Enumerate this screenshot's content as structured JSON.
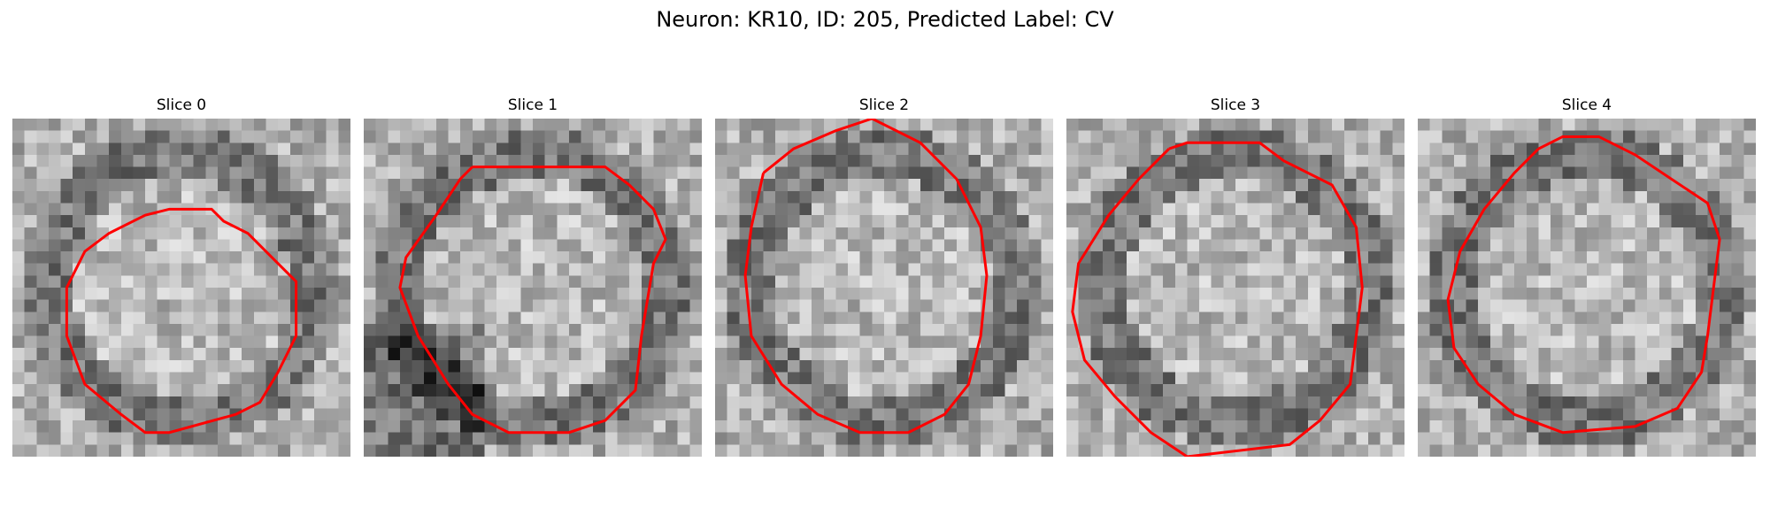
{
  "figure": {
    "title": "Neuron: KR10, ID: 205, Predicted Label: CV"
  },
  "colors": {
    "contour": "#ff0000",
    "colormap": "gray"
  },
  "panels": [
    {
      "title": "Slice 0",
      "seed": 11,
      "gradient": "ring",
      "contour": [
        [
          14.5,
          7.5
        ],
        [
          16.5,
          7.5
        ],
        [
          17.5,
          8.5
        ],
        [
          19.5,
          9.5
        ],
        [
          21.5,
          11.5
        ],
        [
          23.5,
          13.5
        ],
        [
          23.5,
          18
        ],
        [
          22,
          21
        ],
        [
          20.5,
          23.5
        ],
        [
          18.5,
          24.5
        ],
        [
          13,
          26
        ],
        [
          11,
          26
        ],
        [
          9,
          24.5
        ],
        [
          6,
          22
        ],
        [
          4.5,
          18
        ],
        [
          4.5,
          14
        ],
        [
          6,
          11
        ],
        [
          8,
          9.5
        ],
        [
          11,
          8
        ],
        [
          13,
          7.5
        ],
        [
          14.5,
          7.5
        ]
      ]
    },
    {
      "title": "Slice 1",
      "seed": 23,
      "gradient": "lower-left",
      "contour": [
        [
          9,
          4
        ],
        [
          20,
          4
        ],
        [
          22,
          5.5
        ],
        [
          24,
          7.5
        ],
        [
          25,
          10
        ],
        [
          24,
          12
        ],
        [
          23,
          18
        ],
        [
          22.5,
          22.5
        ],
        [
          20,
          25
        ],
        [
          17,
          26
        ],
        [
          12,
          26
        ],
        [
          9,
          24.5
        ],
        [
          7,
          22
        ],
        [
          4.5,
          18
        ],
        [
          3,
          14
        ],
        [
          3.5,
          11.5
        ],
        [
          6,
          8
        ],
        [
          8,
          5
        ],
        [
          9,
          4
        ]
      ]
    },
    {
      "title": "Slice 2",
      "seed": 37,
      "gradient": "ring",
      "contour": [
        [
          4,
          4.5
        ],
        [
          6.5,
          2.5
        ],
        [
          10,
          1
        ],
        [
          13,
          0
        ],
        [
          17,
          2
        ],
        [
          20,
          5
        ],
        [
          22,
          9
        ],
        [
          22.5,
          13
        ],
        [
          22,
          18
        ],
        [
          21,
          22
        ],
        [
          19,
          24.5
        ],
        [
          16,
          26
        ],
        [
          12,
          26
        ],
        [
          8.5,
          24.5
        ],
        [
          5.5,
          22
        ],
        [
          3,
          18
        ],
        [
          2.5,
          13
        ],
        [
          3,
          9
        ],
        [
          4,
          4.5
        ]
      ]
    },
    {
      "title": "Slice 3",
      "seed": 53,
      "gradient": "ring",
      "contour": [
        [
          8.5,
          2.5
        ],
        [
          10,
          2
        ],
        [
          16,
          2
        ],
        [
          18,
          3.5
        ],
        [
          22,
          5.5
        ],
        [
          24,
          9
        ],
        [
          24.5,
          14
        ],
        [
          24,
          18
        ],
        [
          23.5,
          22
        ],
        [
          21,
          25
        ],
        [
          18.5,
          27
        ],
        [
          10,
          28
        ],
        [
          7,
          26
        ],
        [
          4,
          23
        ],
        [
          1.5,
          20
        ],
        [
          0.5,
          16
        ],
        [
          1,
          12
        ],
        [
          3.5,
          8
        ],
        [
          6,
          5
        ],
        [
          8.5,
          2.5
        ]
      ]
    },
    {
      "title": "Slice 4",
      "seed": 71,
      "gradient": "ring",
      "contour": [
        [
          10,
          2.5
        ],
        [
          12,
          1.5
        ],
        [
          15,
          1.5
        ],
        [
          18,
          3
        ],
        [
          21,
          5
        ],
        [
          24,
          7
        ],
        [
          25,
          10
        ],
        [
          24.5,
          14
        ],
        [
          24,
          18
        ],
        [
          23.5,
          21
        ],
        [
          21.5,
          24
        ],
        [
          18,
          25.5
        ],
        [
          12,
          26
        ],
        [
          8,
          24.5
        ],
        [
          5,
          22
        ],
        [
          3,
          19
        ],
        [
          2.5,
          15
        ],
        [
          3.5,
          11
        ],
        [
          5.5,
          7.5
        ],
        [
          8,
          4.5
        ],
        [
          10,
          2.5
        ]
      ]
    }
  ]
}
